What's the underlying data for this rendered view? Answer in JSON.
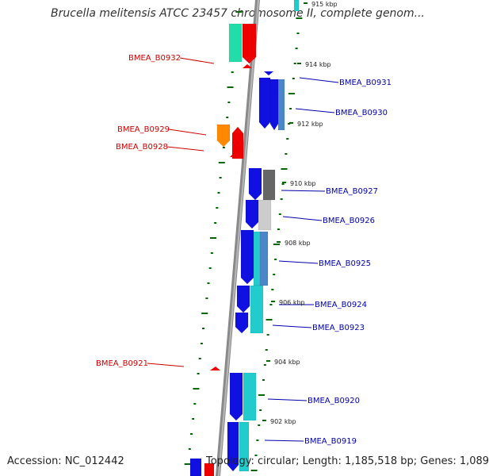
{
  "title": "Brucella melitensis ATCC 23457 chromosome II, complete genom...",
  "footer": {
    "accession": "Accession: NC_012442",
    "topology": "Topology: circular; Length: 1,185,518 bp; Genes: 1,089"
  },
  "colors": {
    "label_reverse": "#cc0000",
    "label_forward": "#0000aa",
    "backbone": "#8a8a8a",
    "tick": "#006600",
    "gene_blue": "#1010e0",
    "gene_red": "#ee0000",
    "gene_teal": "#22cccc",
    "gene_green": "#22ddaa",
    "gene_orange": "#ff8800",
    "gene_grey": "#666666",
    "gene_lightgrey": "#cccccc",
    "gene_steel": "#4a86c8"
  },
  "kbp_labels": [
    "915 kbp",
    "914 kbp",
    "912 kbp",
    "910 kbp",
    "908 kbp",
    "906 kbp",
    "904 kbp",
    "902 kbp"
  ],
  "gene_labels": {
    "reverse": [
      "BMEA_B0932",
      "BMEA_B0929",
      "BMEA_B0928",
      "BMEA_B0921"
    ],
    "forward": [
      "BMEA_B0931",
      "BMEA_B0930",
      "BMEA_B0927",
      "BMEA_B0926",
      "BMEA_B0925",
      "BMEA_B0924",
      "BMEA_B0923",
      "BMEA_B0920",
      "BMEA_B0919"
    ]
  }
}
